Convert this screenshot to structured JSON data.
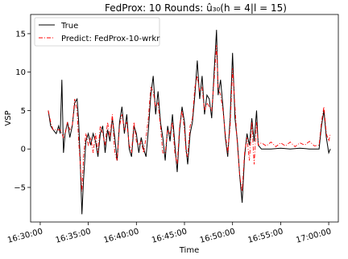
{
  "chart_data": {
    "type": "line",
    "title": "FedProx: 10 Rounds: û₃₀(h = 4|l = 15)",
    "xlabel": "Time",
    "ylabel": "VSP",
    "xlim": [
      "16:29:00",
      "17:01:00"
    ],
    "ylim": [
      -9.5,
      17.5
    ],
    "x_ticks": [
      "16:30:00",
      "16:35:00",
      "16:40:00",
      "16:45:00",
      "16:50:00",
      "16:55:00",
      "17:00:00"
    ],
    "y_ticks": [
      -5,
      0,
      5,
      10,
      15
    ],
    "legend_position": "top-left",
    "grid": false,
    "series": [
      {
        "name": "True",
        "color": "#000000",
        "style": "solid",
        "points": [
          [
            "16:30:50",
            5.0
          ],
          [
            "16:31:05",
            3.0
          ],
          [
            "16:31:20",
            2.5
          ],
          [
            "16:31:40",
            2.0
          ],
          [
            "16:31:55",
            3.0
          ],
          [
            "16:32:05",
            2.0
          ],
          [
            "16:32:15",
            9.0
          ],
          [
            "16:32:25",
            -0.5
          ],
          [
            "16:32:35",
            2.0
          ],
          [
            "16:32:50",
            3.5
          ],
          [
            "16:33:05",
            1.5
          ],
          [
            "16:33:20",
            3.0
          ],
          [
            "16:33:35",
            6.0
          ],
          [
            "16:33:50",
            6.5
          ],
          [
            "16:34:00",
            3.5
          ],
          [
            "16:34:10",
            -2.0
          ],
          [
            "16:34:20",
            -8.5
          ],
          [
            "16:34:30",
            -4.0
          ],
          [
            "16:34:45",
            1.0
          ],
          [
            "16:35:00",
            2.0
          ],
          [
            "16:35:15",
            0.5
          ],
          [
            "16:35:30",
            2.0
          ],
          [
            "16:35:45",
            1.0
          ],
          [
            "16:36:00",
            -1.0
          ],
          [
            "16:36:15",
            2.0
          ],
          [
            "16:36:30",
            3.0
          ],
          [
            "16:36:45",
            -0.5
          ],
          [
            "16:37:00",
            2.5
          ],
          [
            "16:37:15",
            1.0
          ],
          [
            "16:37:30",
            4.0
          ],
          [
            "16:37:45",
            1.5
          ],
          [
            "16:38:00",
            -1.5
          ],
          [
            "16:38:15",
            3.5
          ],
          [
            "16:38:30",
            5.5
          ],
          [
            "16:38:45",
            2.0
          ],
          [
            "16:39:00",
            4.5
          ],
          [
            "16:39:15",
            0.0
          ],
          [
            "16:39:30",
            -1.0
          ],
          [
            "16:39:45",
            3.0
          ],
          [
            "16:40:00",
            2.0
          ],
          [
            "16:40:15",
            -0.5
          ],
          [
            "16:40:30",
            1.5
          ],
          [
            "16:40:45",
            0.0
          ],
          [
            "16:41:00",
            -1.0
          ],
          [
            "16:41:15",
            2.5
          ],
          [
            "16:41:30",
            7.0
          ],
          [
            "16:41:45",
            9.5
          ],
          [
            "16:42:00",
            4.5
          ],
          [
            "16:42:15",
            7.5
          ],
          [
            "16:42:30",
            3.5
          ],
          [
            "16:42:45",
            1.5
          ],
          [
            "16:43:00",
            -1.5
          ],
          [
            "16:43:15",
            3.0
          ],
          [
            "16:43:30",
            1.0
          ],
          [
            "16:43:45",
            4.5
          ],
          [
            "16:44:00",
            0.5
          ],
          [
            "16:44:15",
            -3.0
          ],
          [
            "16:44:30",
            2.5
          ],
          [
            "16:44:45",
            5.5
          ],
          [
            "16:45:00",
            3.5
          ],
          [
            "16:45:10",
            0.0
          ],
          [
            "16:45:20",
            -2.0
          ],
          [
            "16:45:35",
            2.0
          ],
          [
            "16:45:50",
            3.5
          ],
          [
            "16:46:05",
            7.0
          ],
          [
            "16:46:20",
            11.5
          ],
          [
            "16:46:35",
            6.5
          ],
          [
            "16:46:50",
            9.5
          ],
          [
            "16:47:05",
            4.5
          ],
          [
            "16:47:20",
            7.0
          ],
          [
            "16:47:35",
            6.5
          ],
          [
            "16:47:50",
            4.0
          ],
          [
            "16:48:05",
            10.0
          ],
          [
            "16:48:20",
            15.5
          ],
          [
            "16:48:30",
            7.0
          ],
          [
            "16:48:45",
            9.0
          ],
          [
            "16:49:00",
            5.5
          ],
          [
            "16:49:15",
            1.5
          ],
          [
            "16:49:30",
            -1.0
          ],
          [
            "16:49:45",
            4.0
          ],
          [
            "16:50:00",
            12.5
          ],
          [
            "16:50:15",
            4.0
          ],
          [
            "16:50:30",
            1.0
          ],
          [
            "16:50:45",
            -3.5
          ],
          [
            "16:51:00",
            -7.0
          ],
          [
            "16:51:15",
            -1.0
          ],
          [
            "16:51:30",
            2.0
          ],
          [
            "16:51:45",
            0.5
          ],
          [
            "16:52:00",
            4.0
          ],
          [
            "16:52:15",
            1.0
          ],
          [
            "16:52:30",
            5.0
          ],
          [
            "16:52:40",
            0.5
          ],
          [
            "16:53:00",
            0.0
          ],
          [
            "16:54:00",
            0.0
          ],
          [
            "16:55:00",
            0.1
          ],
          [
            "16:56:00",
            0.0
          ],
          [
            "16:57:00",
            0.1
          ],
          [
            "16:58:00",
            0.0
          ],
          [
            "16:59:00",
            0.0
          ],
          [
            "16:59:15",
            3.0
          ],
          [
            "16:59:30",
            5.0
          ],
          [
            "16:59:45",
            1.5
          ],
          [
            "17:00:00",
            -0.5
          ],
          [
            "17:00:10",
            0.0
          ]
        ]
      },
      {
        "name": "Predict: FedProx-10-wrkr",
        "color": "#ff0000",
        "style": "dashdot",
        "points": [
          [
            "16:30:50",
            5.0
          ],
          [
            "16:31:05",
            3.5
          ],
          [
            "16:31:20",
            2.5
          ],
          [
            "16:31:40",
            2.5
          ],
          [
            "16:31:55",
            2.5
          ],
          [
            "16:32:05",
            2.5
          ],
          [
            "16:32:15",
            2.0
          ],
          [
            "16:32:25",
            1.5
          ],
          [
            "16:32:35",
            2.0
          ],
          [
            "16:32:50",
            3.5
          ],
          [
            "16:33:05",
            2.5
          ],
          [
            "16:33:20",
            3.0
          ],
          [
            "16:33:35",
            6.5
          ],
          [
            "16:33:50",
            5.0
          ],
          [
            "16:34:00",
            1.0
          ],
          [
            "16:34:10",
            -2.0
          ],
          [
            "16:34:20",
            -5.5
          ],
          [
            "16:34:30",
            -1.0
          ],
          [
            "16:34:45",
            2.0
          ],
          [
            "16:35:00",
            0.5
          ],
          [
            "16:35:15",
            1.5
          ],
          [
            "16:35:30",
            -0.5
          ],
          [
            "16:35:45",
            2.0
          ],
          [
            "16:36:00",
            -0.5
          ],
          [
            "16:36:15",
            3.0
          ],
          [
            "16:36:30",
            2.0
          ],
          [
            "16:36:45",
            0.5
          ],
          [
            "16:37:00",
            3.5
          ],
          [
            "16:37:15",
            1.5
          ],
          [
            "16:37:30",
            4.5
          ],
          [
            "16:37:45",
            -0.5
          ],
          [
            "16:38:00",
            -1.5
          ],
          [
            "16:38:15",
            3.0
          ],
          [
            "16:38:30",
            4.5
          ],
          [
            "16:38:45",
            2.5
          ],
          [
            "16:39:00",
            3.5
          ],
          [
            "16:39:15",
            0.5
          ],
          [
            "16:39:30",
            -0.5
          ],
          [
            "16:39:45",
            3.5
          ],
          [
            "16:40:00",
            1.0
          ],
          [
            "16:40:15",
            0.5
          ],
          [
            "16:40:30",
            1.0
          ],
          [
            "16:40:45",
            -0.5
          ],
          [
            "16:41:00",
            1.5
          ],
          [
            "16:41:15",
            4.0
          ],
          [
            "16:41:30",
            8.0
          ],
          [
            "16:41:45",
            7.5
          ],
          [
            "16:42:00",
            5.5
          ],
          [
            "16:42:15",
            6.0
          ],
          [
            "16:42:30",
            3.0
          ],
          [
            "16:42:45",
            -0.5
          ],
          [
            "16:43:00",
            -0.5
          ],
          [
            "16:43:15",
            2.5
          ],
          [
            "16:43:30",
            2.0
          ],
          [
            "16:43:45",
            3.5
          ],
          [
            "16:44:00",
            -0.5
          ],
          [
            "16:44:15",
            -2.0
          ],
          [
            "16:44:30",
            3.0
          ],
          [
            "16:44:45",
            5.0
          ],
          [
            "16:45:00",
            2.5
          ],
          [
            "16:45:10",
            -0.5
          ],
          [
            "16:45:20",
            -1.0
          ],
          [
            "16:45:35",
            3.0
          ],
          [
            "16:45:50",
            4.0
          ],
          [
            "16:46:05",
            8.0
          ],
          [
            "16:46:20",
            9.5
          ],
          [
            "16:46:35",
            7.5
          ],
          [
            "16:46:50",
            8.0
          ],
          [
            "16:47:05",
            5.0
          ],
          [
            "16:47:20",
            6.0
          ],
          [
            "16:47:35",
            5.5
          ],
          [
            "16:47:50",
            5.0
          ],
          [
            "16:48:05",
            9.0
          ],
          [
            "16:48:20",
            13.5
          ],
          [
            "16:48:30",
            8.0
          ],
          [
            "16:48:45",
            7.0
          ],
          [
            "16:49:00",
            5.0
          ],
          [
            "16:49:15",
            2.0
          ],
          [
            "16:49:30",
            -0.5
          ],
          [
            "16:49:45",
            3.0
          ],
          [
            "16:50:00",
            10.5
          ],
          [
            "16:50:15",
            5.5
          ],
          [
            "16:50:30",
            0.5
          ],
          [
            "16:50:45",
            -3.5
          ],
          [
            "16:51:00",
            -5.5
          ],
          [
            "16:51:15",
            -0.5
          ],
          [
            "16:51:30",
            1.5
          ],
          [
            "16:51:45",
            -1.5
          ],
          [
            "16:52:00",
            3.5
          ],
          [
            "16:52:15",
            -2.0
          ],
          [
            "16:52:30",
            3.5
          ],
          [
            "16:52:40",
            0.5
          ],
          [
            "16:53:00",
            0.8
          ],
          [
            "16:53:30",
            0.4
          ],
          [
            "16:54:00",
            0.9
          ],
          [
            "16:54:30",
            0.3
          ],
          [
            "16:55:00",
            0.8
          ],
          [
            "16:55:30",
            0.4
          ],
          [
            "16:56:00",
            0.9
          ],
          [
            "16:56:30",
            0.3
          ],
          [
            "16:57:00",
            0.8
          ],
          [
            "16:57:30",
            0.5
          ],
          [
            "16:58:00",
            1.0
          ],
          [
            "16:58:30",
            0.4
          ],
          [
            "16:59:00",
            0.5
          ],
          [
            "16:59:15",
            3.5
          ],
          [
            "16:59:30",
            5.5
          ],
          [
            "16:59:45",
            2.0
          ],
          [
            "17:00:00",
            1.0
          ],
          [
            "17:00:10",
            2.0
          ]
        ]
      }
    ]
  }
}
